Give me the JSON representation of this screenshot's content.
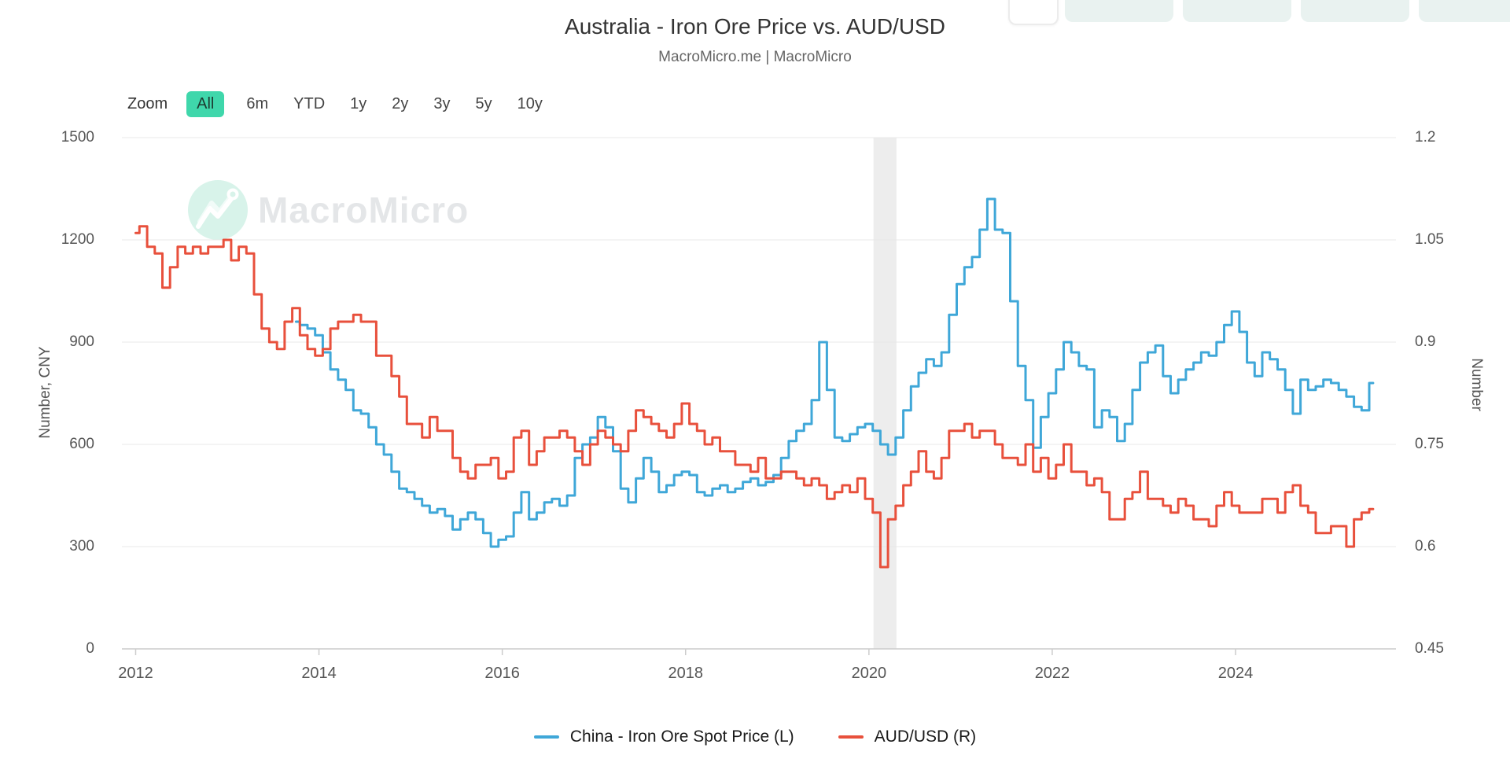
{
  "header": {
    "title": "Australia - Iron Ore Price vs. AUD/USD",
    "subtitle": "MacroMicro.me | MacroMicro"
  },
  "toolbar": {
    "zoom_label": "Zoom",
    "ranges": [
      "All",
      "6m",
      "YTD",
      "1y",
      "2y",
      "3y",
      "5y",
      "10y"
    ],
    "active_range": "All"
  },
  "colors": {
    "series_blue": "#3fa7d8",
    "series_red": "#e8503c",
    "grid": "#e8e8e8",
    "axis_line": "#cccccc",
    "recession_band": "#ededed",
    "active_pill": "#3fd7ab",
    "pale_toolbar_button": "#e9f2f0",
    "watermark_mint": "#d8f3ea",
    "watermark_text": "#e4e6e8"
  },
  "chart_data": {
    "type": "line",
    "title": "Australia - Iron Ore Price vs. AUD/USD",
    "watermark": "MacroMicro",
    "grid": true,
    "legend_position": "bottom",
    "x_axis": {
      "range": [
        2011.85,
        2025.75
      ],
      "ticks": [
        2012,
        2014,
        2016,
        2018,
        2020,
        2022,
        2024
      ]
    },
    "y_left": {
      "label": "Number, CNY",
      "range": [
        0,
        1500
      ],
      "ticks": [
        0,
        300,
        600,
        900,
        1200,
        1500
      ]
    },
    "y_right": {
      "label": "Number",
      "range": [
        0.45,
        1.2
      ],
      "ticks": [
        0.45,
        0.6,
        0.75,
        0.9,
        1.05,
        1.2
      ]
    },
    "recession_band": {
      "from": 2020.05,
      "to": 2020.3
    },
    "series": [
      {
        "name": "China - Iron Ore Spot Price (L)",
        "axis": "left",
        "color": "#3fa7d8",
        "start": 2013.75,
        "step_years": 0.0833333,
        "values": [
          960,
          950,
          940,
          920,
          870,
          820,
          790,
          760,
          700,
          690,
          650,
          600,
          570,
          520,
          470,
          460,
          440,
          420,
          400,
          410,
          390,
          350,
          380,
          400,
          380,
          340,
          300,
          320,
          330,
          400,
          460,
          380,
          400,
          430,
          440,
          420,
          450,
          560,
          600,
          620,
          680,
          650,
          580,
          470,
          430,
          500,
          560,
          520,
          460,
          480,
          510,
          520,
          510,
          460,
          450,
          470,
          480,
          460,
          470,
          490,
          500,
          480,
          490,
          510,
          560,
          610,
          640,
          660,
          730,
          900,
          760,
          620,
          610,
          630,
          650,
          660,
          640,
          600,
          570,
          620,
          700,
          770,
          810,
          850,
          830,
          870,
          980,
          1070,
          1120,
          1150,
          1230,
          1320,
          1230,
          1220,
          1020,
          830,
          730,
          590,
          680,
          750,
          820,
          900,
          870,
          830,
          820,
          650,
          700,
          680,
          610,
          660,
          760,
          840,
          870,
          890,
          800,
          750,
          790,
          820,
          840,
          870,
          860,
          900,
          950,
          990,
          930,
          840,
          800,
          870,
          850,
          820,
          760,
          690,
          790,
          760,
          770,
          790,
          780,
          760,
          740,
          710,
          700,
          780
        ]
      },
      {
        "name": "AUD/USD (R)",
        "axis": "right",
        "color": "#e8503c",
        "start": 2012.0,
        "step_years": 0.0833333,
        "values": [
          1.06,
          1.07,
          1.04,
          1.03,
          0.98,
          1.01,
          1.04,
          1.03,
          1.04,
          1.03,
          1.04,
          1.04,
          1.05,
          1.02,
          1.04,
          1.03,
          0.97,
          0.92,
          0.9,
          0.89,
          0.93,
          0.95,
          0.91,
          0.89,
          0.88,
          0.89,
          0.92,
          0.93,
          0.93,
          0.94,
          0.93,
          0.93,
          0.88,
          0.88,
          0.85,
          0.82,
          0.78,
          0.78,
          0.76,
          0.79,
          0.77,
          0.77,
          0.73,
          0.71,
          0.7,
          0.72,
          0.72,
          0.73,
          0.7,
          0.71,
          0.76,
          0.77,
          0.72,
          0.74,
          0.76,
          0.76,
          0.77,
          0.76,
          0.74,
          0.72,
          0.75,
          0.77,
          0.76,
          0.75,
          0.74,
          0.77,
          0.8,
          0.79,
          0.78,
          0.77,
          0.76,
          0.78,
          0.81,
          0.78,
          0.77,
          0.75,
          0.76,
          0.74,
          0.74,
          0.72,
          0.72,
          0.71,
          0.73,
          0.7,
          0.7,
          0.71,
          0.71,
          0.7,
          0.69,
          0.7,
          0.69,
          0.67,
          0.68,
          0.69,
          0.68,
          0.7,
          0.67,
          0.65,
          0.57,
          0.64,
          0.66,
          0.69,
          0.71,
          0.74,
          0.71,
          0.7,
          0.73,
          0.77,
          0.77,
          0.78,
          0.76,
          0.77,
          0.77,
          0.75,
          0.73,
          0.73,
          0.72,
          0.75,
          0.71,
          0.73,
          0.7,
          0.72,
          0.75,
          0.71,
          0.71,
          0.69,
          0.7,
          0.68,
          0.64,
          0.64,
          0.67,
          0.68,
          0.71,
          0.67,
          0.67,
          0.66,
          0.65,
          0.67,
          0.66,
          0.64,
          0.64,
          0.63,
          0.66,
          0.68,
          0.66,
          0.65,
          0.65,
          0.65,
          0.67,
          0.67,
          0.65,
          0.68,
          0.69,
          0.66,
          0.65,
          0.62,
          0.62,
          0.63,
          0.63,
          0.6,
          0.64,
          0.65,
          0.655
        ]
      }
    ]
  }
}
